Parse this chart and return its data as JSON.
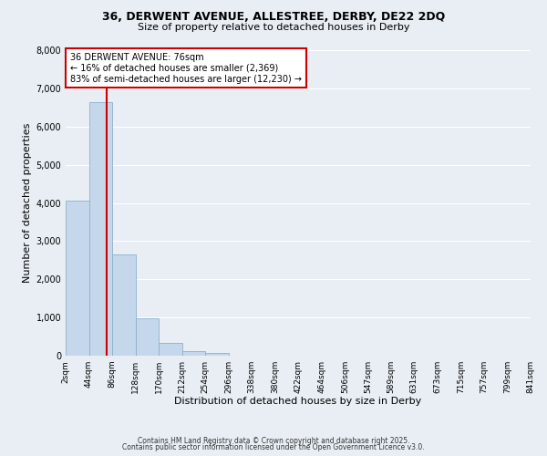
{
  "title_line1": "36, DERWENT AVENUE, ALLESTREE, DERBY, DE22 2DQ",
  "title_line2": "Size of property relative to detached houses in Derby",
  "xlabel": "Distribution of detached houses by size in Derby",
  "ylabel": "Number of detached properties",
  "bar_edges": [
    2,
    44,
    86,
    128,
    170,
    212,
    254,
    296,
    338,
    380,
    422,
    464,
    506,
    547,
    589,
    631,
    673,
    715,
    757,
    799,
    841
  ],
  "bar_heights": [
    4050,
    6650,
    2650,
    990,
    330,
    110,
    60,
    0,
    0,
    0,
    0,
    0,
    0,
    0,
    0,
    0,
    0,
    0,
    0,
    0
  ],
  "bar_color": "#c5d8eb",
  "bar_edgecolor": "#8ab0cc",
  "property_line_x": 76,
  "property_line_color": "#cc0000",
  "ylim": [
    0,
    8000
  ],
  "yticks": [
    0,
    1000,
    2000,
    3000,
    4000,
    5000,
    6000,
    7000,
    8000
  ],
  "annotation_title": "36 DERWENT AVENUE: 76sqm",
  "annotation_line2": "← 16% of detached houses are smaller (2,369)",
  "annotation_line3": "83% of semi-detached houses are larger (12,230) →",
  "annotation_box_facecolor": "#ffffff",
  "annotation_box_edgecolor": "#cc0000",
  "bg_color": "#e8eef4",
  "grid_color": "#ffffff",
  "footer_line1": "Contains HM Land Registry data © Crown copyright and database right 2025.",
  "footer_line2": "Contains public sector information licensed under the Open Government Licence v3.0.",
  "tick_labels": [
    "2sqm",
    "44sqm",
    "86sqm",
    "128sqm",
    "170sqm",
    "212sqm",
    "254sqm",
    "296sqm",
    "338sqm",
    "380sqm",
    "422sqm",
    "464sqm",
    "506sqm",
    "547sqm",
    "589sqm",
    "631sqm",
    "673sqm",
    "715sqm",
    "757sqm",
    "799sqm",
    "841sqm"
  ]
}
